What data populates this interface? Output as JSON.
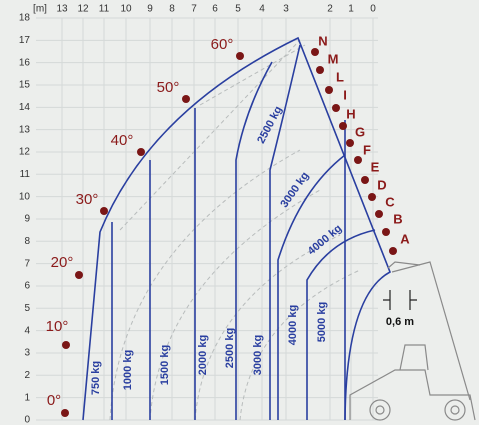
{
  "x_axis": {
    "labels": [
      "[m]",
      "13",
      "12",
      "11",
      "10",
      "9",
      "8",
      "7",
      "6",
      "5",
      "4",
      "3",
      "2",
      "1",
      "0"
    ]
  },
  "y_axis": {
    "labels": [
      "18",
      "17",
      "16",
      "15",
      "14",
      "13",
      "12",
      "11",
      "10",
      "9",
      "8",
      "7",
      "6",
      "5",
      "4",
      "3",
      "2",
      "1",
      "0"
    ]
  },
  "angles": [
    "0°",
    "10°",
    "20°",
    "30°",
    "40°",
    "50°",
    "60°"
  ],
  "points": [
    "A",
    "B",
    "C",
    "D",
    "E",
    "F",
    "G",
    "H",
    "I",
    "L",
    "M",
    "N"
  ],
  "loads": [
    "750 kg",
    "1000 kg",
    "1500 kg",
    "2000 kg",
    "2500 kg",
    "3000 kg",
    "4000 kg",
    "5000 kg"
  ],
  "load_curves": [
    "2500 kg",
    "3000 kg",
    "4000 kg"
  ],
  "dimension": "0,6 m"
}
